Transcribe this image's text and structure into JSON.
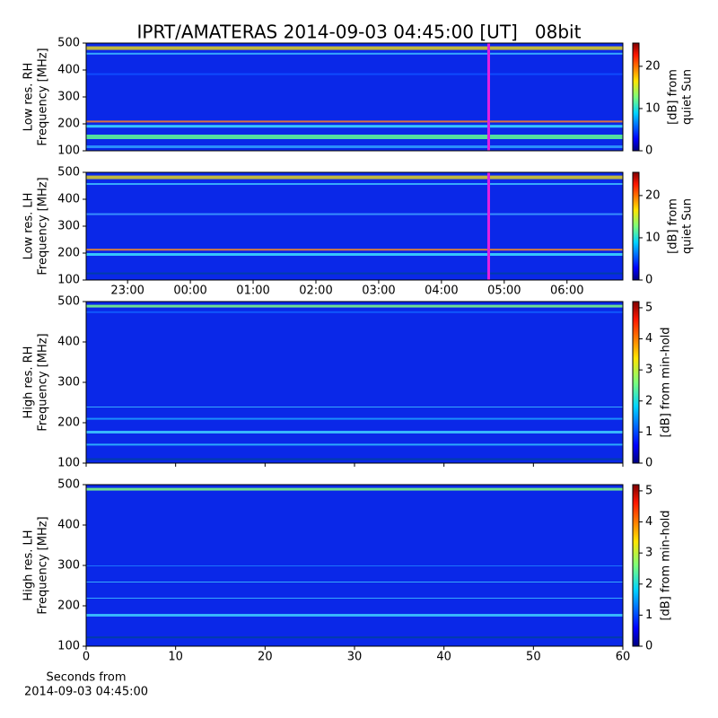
{
  "chart_data": [
    {
      "type": "heatmap",
      "title": "IPRT/AMATERAS 2014-09-03 04:45:00 [UT]   08bit",
      "ylabel": [
        "Low res. RH",
        "Frequency [MHz]"
      ],
      "ylim": [
        100,
        500
      ],
      "yticks": [
        100,
        200,
        300,
        400,
        500
      ],
      "clabel": [
        "[dB] from",
        "quiet Sun"
      ],
      "clim": [
        0,
        25.5
      ],
      "cticks": [
        0,
        10,
        20
      ],
      "colormap": "jet"
    },
    {
      "type": "heatmap",
      "ylabel": [
        "Low res. LH",
        "Frequency [MHz]"
      ],
      "ylim": [
        100,
        500
      ],
      "yticks": [
        100,
        200,
        300,
        400,
        500
      ],
      "xlim": [
        22.34,
        30.89
      ],
      "xticks": [
        {
          "value": 23,
          "label": "23:00"
        },
        {
          "value": 24,
          "label": "00:00"
        },
        {
          "value": 25,
          "label": "01:00"
        },
        {
          "value": 26,
          "label": "02:00"
        },
        {
          "value": 27,
          "label": "03:00"
        },
        {
          "value": 28,
          "label": "04:00"
        },
        {
          "value": 29,
          "label": "05:00"
        },
        {
          "value": 30,
          "label": "06:00"
        }
      ],
      "clabel": [
        "[dB] from",
        "quiet Sun"
      ],
      "clim": [
        0,
        25.5
      ],
      "cticks": [
        0,
        10,
        20
      ],
      "colormap": "jet"
    },
    {
      "type": "heatmap",
      "ylabel": [
        "High res. RH",
        "Frequency [MHz]"
      ],
      "ylim": [
        100,
        500
      ],
      "yticks": [
        100,
        200,
        300,
        400,
        500
      ],
      "xlim": [
        0,
        60
      ],
      "xticks": [
        0,
        10,
        20,
        30,
        40,
        50,
        60
      ],
      "show_xtick_labels": false,
      "clabel": [
        "[dB] from min-hold"
      ],
      "clim": [
        0,
        5.2
      ],
      "cticks": [
        0,
        1,
        2,
        3,
        4,
        5
      ],
      "colormap": "jet"
    },
    {
      "type": "heatmap",
      "ylabel": [
        "High res. LH",
        "Frequency [MHz]"
      ],
      "ylim": [
        100,
        500
      ],
      "yticks": [
        100,
        200,
        300,
        400,
        500
      ],
      "xlim": [
        0,
        60
      ],
      "xticks": [
        0,
        10,
        20,
        30,
        40,
        50,
        60
      ],
      "show_xtick_labels": true,
      "xlabel": [
        "Seconds from",
        "2014-09-03 04:45:00"
      ],
      "clabel": [
        "[dB] from min-hold"
      ],
      "clim": [
        0,
        5.2
      ],
      "cticks": [
        0,
        1,
        2,
        3,
        4,
        5
      ],
      "colormap": "jet"
    }
  ]
}
